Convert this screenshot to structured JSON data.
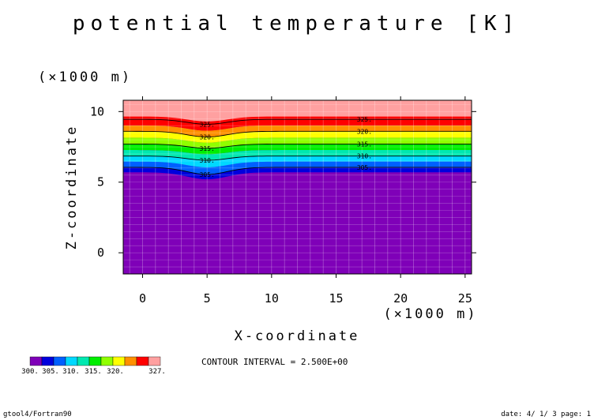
{
  "chart_data": {
    "type": "heatmap",
    "title": "potential temperature [K]",
    "xlabel": "X-coordinate",
    "ylabel": "Z-coordinate",
    "x_unit": "(×1000 m)",
    "y_unit": "(×1000 m)",
    "xlim": [
      -1.5,
      25.5
    ],
    "ylim": [
      -1.5,
      10.8
    ],
    "x_ticks": [
      "0",
      "5",
      "10",
      "15",
      "20",
      "25"
    ],
    "y_ticks": [
      "0",
      "5",
      "10"
    ],
    "contour_labels": [
      "305.",
      "310.",
      "315.",
      "320.",
      "325."
    ],
    "contour_levels": [
      305,
      310,
      315,
      320,
      325
    ],
    "contours": [
      {
        "level": 305,
        "z_far": 6.05,
        "z_mountain": 5.55
      },
      {
        "level": 310,
        "z_far": 6.85,
        "z_mountain": 6.55
      },
      {
        "level": 315,
        "z_far": 7.7,
        "z_mountain": 7.4
      },
      {
        "level": 320,
        "z_far": 8.6,
        "z_mountain": 8.2
      },
      {
        "level": 325,
        "z_far": 9.45,
        "z_mountain": 9.1
      }
    ],
    "mountain_center_x": 5.0,
    "contour_interval": "CONTOUR INTERVAL = 2.500E+00",
    "colorbar": {
      "colors": [
        "#7f00b8",
        "#0000dd",
        "#0060ff",
        "#00d8ff",
        "#00e8b0",
        "#00ee00",
        "#90ff00",
        "#ffff00",
        "#ff9000",
        "#ff0000",
        "#ffa0a0"
      ],
      "labels": [
        "300.",
        "305.",
        "310.",
        "315.",
        "320.",
        "327."
      ]
    },
    "grid": true
  },
  "footer": {
    "left": "gtool4/Fortran90",
    "right": "date: 4/ 1/ 3 page: 1"
  }
}
